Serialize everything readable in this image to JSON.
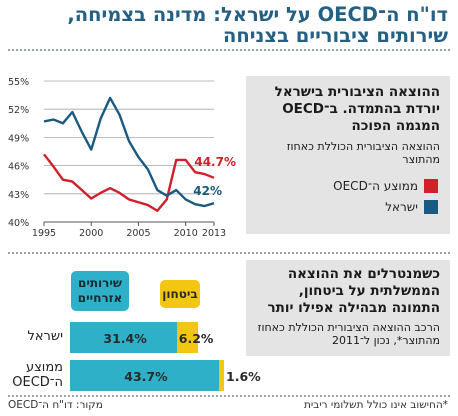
{
  "headline": "דו\"ח ה־OECD על ישראל: מדינה בצמיחה, שירותים ציבוריים בצניחה",
  "top_panel": {
    "title": "ההוצאה הציבורית בישראל יורדת בהתמדה. ב־OECD המגמה הפוכה",
    "subtitle": "ההוצאה הציבורית הכוללת כאחוז מהתוצר"
  },
  "bottom_panel": {
    "title": "כשמנטרלים את ההוצאה הממשלתית על ביטחון, התמונה מבהילה אפילו יותר",
    "subtitle": "הרכב ההוצאה הציבורית הכוללת כאחוז מהתוצר*, נכון ל־2011"
  },
  "legend": {
    "oecd": "ממוצע ה־OECD",
    "israel": "ישראל"
  },
  "tags": {
    "civil": "שירותים אזרחיים",
    "security": "ביטחון"
  },
  "rows": {
    "israel": "ישראל",
    "oecd": "ממוצע ה־OECD"
  },
  "footer": {
    "note": "*החישוב אינו כולל תשלומי ריבית",
    "source": "מקור: דו\"ח ה־OECD"
  },
  "colors": {
    "title": "#245f84",
    "israel": "#1b5a80",
    "oecd": "#d0202a",
    "civil": "#2eb0c9",
    "security": "#f3c614",
    "panel": "#e4e4e4",
    "grid": "#a8a8a8"
  },
  "chart_data": [
    {
      "type": "line",
      "title": "",
      "xlabel": "",
      "ylabel": "",
      "xlim": [
        1995,
        2013
      ],
      "ylim": [
        40,
        55
      ],
      "x_ticks": [
        "1995",
        "2000",
        "2005",
        "2010",
        "2013"
      ],
      "y_ticks": [
        "40%",
        "43%",
        "46%",
        "49%",
        "52%",
        "55%"
      ],
      "grid": true,
      "x": [
        1995,
        1996,
        1997,
        1998,
        1999,
        2000,
        2001,
        2002,
        2003,
        2004,
        2005,
        2006,
        2007,
        2008,
        2009,
        2010,
        2011,
        2012,
        2013
      ],
      "series": [
        {
          "name": "ממוצע ה־OECD",
          "color": "#d0202a",
          "values": [
            47.2,
            45.9,
            44.5,
            44.3,
            43.4,
            42.5,
            43.1,
            43.6,
            43.1,
            42.4,
            42.1,
            41.8,
            41.2,
            42.4,
            46.6,
            46.6,
            45.3,
            45.1,
            44.7
          ],
          "end_label": "44.7%"
        },
        {
          "name": "ישראל",
          "color": "#1b5a80",
          "values": [
            50.7,
            50.9,
            50.5,
            51.7,
            49.6,
            47.7,
            51.0,
            53.2,
            51.4,
            48.6,
            46.9,
            45.6,
            43.4,
            42.8,
            43.4,
            42.4,
            41.9,
            41.7,
            42.0
          ],
          "end_label": "42%"
        }
      ]
    },
    {
      "type": "bar",
      "stacked": true,
      "orientation": "horizontal",
      "title": "",
      "categories": [
        "ישראל",
        "ממוצע ה־OECD"
      ],
      "series": [
        {
          "name": "שירותים אזרחיים",
          "color": "#2eb0c9",
          "values": [
            31.4,
            43.7
          ],
          "labels": [
            "31.4%",
            "43.7%"
          ]
        },
        {
          "name": "ביטחון",
          "color": "#f3c614",
          "values": [
            6.2,
            1.6
          ],
          "labels": [
            "6.2%",
            "1.6%"
          ]
        }
      ]
    }
  ]
}
